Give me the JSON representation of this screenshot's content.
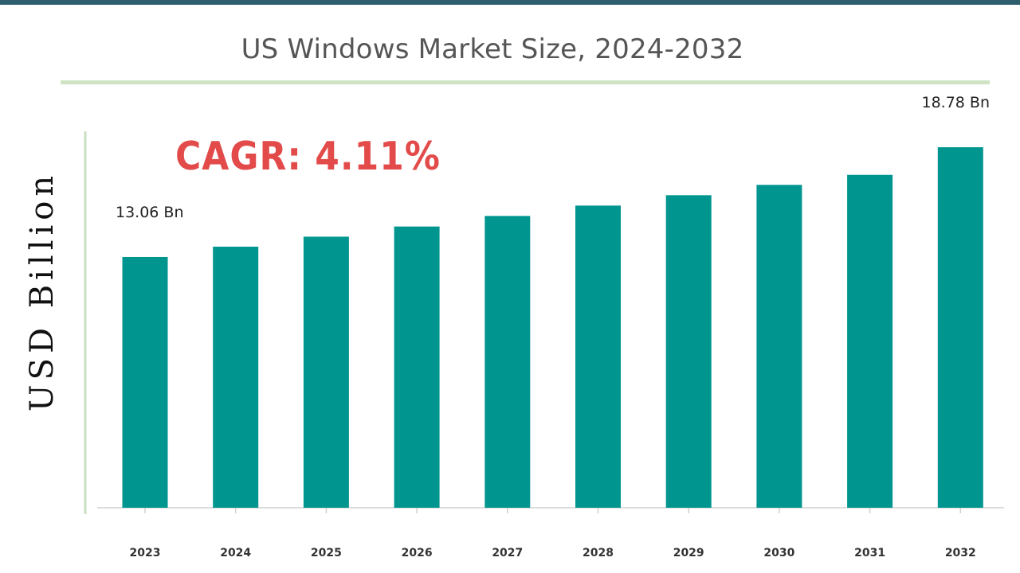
{
  "chart_data": {
    "type": "bar",
    "title": "US Windows Market Size, 2024-2032",
    "ylabel": "USD Billion",
    "xlabel": "",
    "annotation": "CAGR: 4.11%",
    "categories": [
      "2023",
      "2024",
      "2025",
      "2026",
      "2027",
      "2028",
      "2029",
      "2030",
      "2031",
      "2032"
    ],
    "values": [
      13.06,
      13.6,
      14.12,
      14.65,
      15.2,
      15.74,
      16.28,
      16.82,
      17.34,
      18.78
    ],
    "data_labels": [
      {
        "index": 0,
        "text": "13.06 Bn"
      },
      {
        "index": 9,
        "text": "18.78 Bn"
      }
    ],
    "ylim": [
      0,
      19
    ],
    "grid": false,
    "bar_color": "#00968f",
    "axis_color": "#c9dfc0",
    "title_color": "#555555",
    "annotation_color": "#e34a4a"
  }
}
